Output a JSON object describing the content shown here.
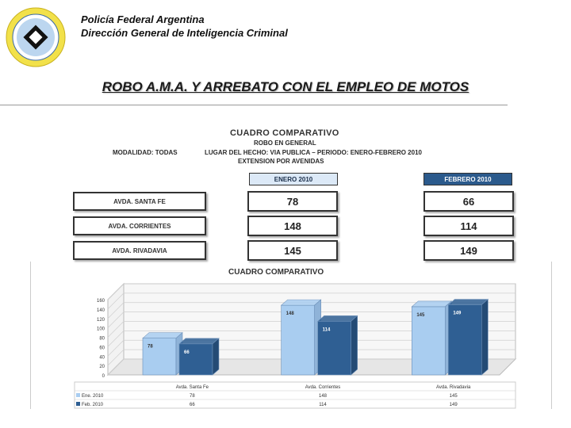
{
  "header": {
    "org": "Policía Federal Argentina",
    "dept": "Dirección General de Inteligencia Criminal"
  },
  "slide_title": "ROBO A.M.A. Y ARREBATO CON EL EMPLEO DE MOTOS",
  "summary": {
    "title": "CUADRO COMPARATIVO",
    "line1": "ROBO EN GENERAL",
    "modalidad": "MODALIDAD: TODAS",
    "lugar": "LUGAR DEL HECHO: VIA PUBLICA – PERIODO: ENERO-FEBRERO 2010",
    "extension": "EXTENSION POR AVENIDAS",
    "col1": "ENERO 2010",
    "col2": "FEBRERO 2010",
    "rows": [
      {
        "label": "AVDA. SANTA FE",
        "v1": "78",
        "v2": "66"
      },
      {
        "label": "AVDA. CORRIENTES",
        "v1": "148",
        "v2": "114"
      },
      {
        "label": "AVDA. RIVADAVIA",
        "v1": "145",
        "v2": "149"
      }
    ]
  },
  "colors": {
    "light_bar": "#a9cdf0",
    "dark_bar": "#2f5f93",
    "col1_bg": "#dce9f7",
    "col2_bg": "#2b5a8c"
  },
  "chart_data": {
    "type": "bar",
    "title": "CUADRO COMPARATIVO",
    "categories": [
      "Avda. Santa Fe",
      "Avda. Corrientes",
      "Avda. Rivadavia"
    ],
    "series": [
      {
        "name": "Ene. 2010",
        "values": [
          78,
          148,
          145
        ]
      },
      {
        "name": "Feb. 2010",
        "values": [
          66,
          114,
          149
        ]
      }
    ],
    "yticks": [
      "0",
      "20",
      "40",
      "60",
      "80",
      "100",
      "120",
      "140",
      "160"
    ],
    "ylim": [
      0,
      160
    ],
    "grid": true,
    "legend": "data table below chart"
  }
}
